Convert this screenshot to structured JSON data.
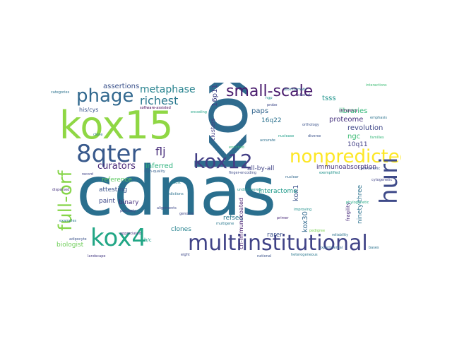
{
  "word_cloud": {
    "words": [
      {
        "text": "cdnas",
        "color": "#2a6f8e"
      },
      {
        "text": "kox7",
        "color": "#2f6b8e"
      },
      {
        "text": "kox15",
        "color": "#8fd744"
      },
      {
        "text": "phage",
        "color": "#31688e"
      },
      {
        "text": "8qter",
        "color": "#38598c"
      },
      {
        "text": "full-orf",
        "color": "#86d549"
      },
      {
        "text": "kox4",
        "color": "#21a685"
      },
      {
        "text": "multiinstitutional",
        "color": "#404387"
      },
      {
        "text": "kox12",
        "color": "#433e85"
      },
      {
        "text": "nonpredicted",
        "color": "#fde725"
      },
      {
        "text": "huri",
        "color": "#3e4a89"
      },
      {
        "text": "small-scale",
        "color": "#481a6c"
      },
      {
        "text": "metaphase",
        "color": "#26828e"
      },
      {
        "text": "richest",
        "color": "#2a788e"
      },
      {
        "text": "curators",
        "color": "#482878"
      },
      {
        "text": "flj",
        "color": "#472d7b"
      },
      {
        "text": "assertions",
        "color": "#3b528b"
      },
      {
        "text": "16p11",
        "color": "#414487"
      },
      {
        "text": "tsss",
        "color": "#1f948c"
      },
      {
        "text": "libraries",
        "color": "#35b779"
      },
      {
        "text": "proteome",
        "color": "#46327e"
      },
      {
        "text": "revolution",
        "color": "#3f4788"
      },
      {
        "text": "paps",
        "color": "#32658e"
      },
      {
        "text": "16q22",
        "color": "#2c728e"
      },
      {
        "text": "ngc",
        "color": "#3dbc74"
      },
      {
        "text": "10q11",
        "color": "#423f85"
      },
      {
        "text": "inferred",
        "color": "#2db27d"
      },
      {
        "text": "all-by-all",
        "color": "#414487"
      },
      {
        "text": "immunoabsorption",
        "color": "#46327e"
      },
      {
        "text": "kox1",
        "color": "#3b528b"
      },
      {
        "text": "kox30",
        "color": "#31688e"
      },
      {
        "text": "reference",
        "color": "#5ec962"
      },
      {
        "text": "attesting",
        "color": "#3a548c"
      },
      {
        "text": "interactome",
        "color": "#1f9a8a"
      },
      {
        "text": "ninety-three",
        "color": "#2c728e"
      },
      {
        "text": "paint",
        "color": "#3e4989"
      },
      {
        "text": "binary",
        "color": "#46307e"
      },
      {
        "text": "clones",
        "color": "#26828e"
      },
      {
        "text": "refseq",
        "color": "#2a788e"
      },
      {
        "text": "crl-immunocoated",
        "color": "#482173"
      },
      {
        "text": "rarer",
        "color": "#3b528b"
      },
      {
        "text": "biologist",
        "color": "#6ece58"
      },
      {
        "text": "clusters",
        "color": "#433e85"
      },
      {
        "text": "his/cys",
        "color": "#3a548c"
      },
      {
        "text": "h/c",
        "color": "#1f9e89"
      },
      {
        "text": "fragility",
        "color": "#472a7a"
      },
      {
        "text": "heterogeneous",
        "color": "#2a788e"
      },
      {
        "text": "exemplified",
        "color": "#20928c"
      },
      {
        "text": "enriched",
        "color": "#35b779"
      },
      {
        "text": "high-quality",
        "color": "#355f8d"
      },
      {
        "text": "finger-encoding",
        "color": "#3e4a89"
      },
      {
        "text": "nuclease",
        "color": "#1f9e89"
      },
      {
        "text": "orthology",
        "color": "#3b528b"
      },
      {
        "text": "stringency",
        "color": "#440154"
      },
      {
        "text": "phylogenetic",
        "color": "#22a884"
      },
      {
        "text": "alignments",
        "color": "#3e4989"
      },
      {
        "text": "reliability",
        "color": "#2c728e"
      },
      {
        "text": "improving",
        "color": "#21918c"
      },
      {
        "text": "primer",
        "color": "#482878"
      },
      {
        "text": "pedigree",
        "color": "#7ad151"
      },
      {
        "text": "examples",
        "color": "#2a788e"
      },
      {
        "text": "landscape",
        "color": "#443983"
      },
      {
        "text": "eight",
        "color": "#3e4989"
      },
      {
        "text": "shared",
        "color": "#3e4989"
      },
      {
        "text": "record",
        "color": "#414487"
      },
      {
        "text": "genome",
        "color": "#3f4788"
      },
      {
        "text": "categories",
        "color": "#2c728e"
      },
      {
        "text": "encoding",
        "color": "#20a486"
      },
      {
        "text": "software-assisted",
        "color": "#440154"
      },
      {
        "text": "experimental",
        "color": "#31688e"
      },
      {
        "text": "hgp",
        "color": "#21918c"
      },
      {
        "text": "accurate",
        "color": "#2d708e"
      },
      {
        "text": "robust",
        "color": "#25848e"
      },
      {
        "text": "adipocyte",
        "color": "#3b528b"
      },
      {
        "text": "diverse",
        "color": "#3b528b"
      },
      {
        "text": "bioinformatic",
        "color": "#2c728e"
      },
      {
        "text": "interactions",
        "color": "#3dbc74"
      },
      {
        "text": "clone",
        "color": "#2a788e"
      },
      {
        "text": "precisely",
        "color": "#3e4989"
      },
      {
        "text": "appreciated",
        "color": "#46327e"
      },
      {
        "text": "multigene",
        "color": "#2a788e"
      },
      {
        "text": "national",
        "color": "#3b528b"
      },
      {
        "text": "predictions",
        "color": "#2c728e"
      },
      {
        "text": "undiscovered",
        "color": "#20928c"
      },
      {
        "text": "emphasis",
        "color": "#2c728e"
      },
      {
        "text": "families",
        "color": "#35b779"
      },
      {
        "text": "probe",
        "color": "#3e4989"
      },
      {
        "text": "cytogenetic",
        "color": "#414487"
      },
      {
        "text": "nuclear",
        "color": "#31688e"
      },
      {
        "text": "bases",
        "color": "#2c728e"
      },
      {
        "text": "centromeric",
        "color": "#3b528b"
      },
      {
        "text": "dispersed",
        "color": "#46327e"
      }
    ]
  }
}
